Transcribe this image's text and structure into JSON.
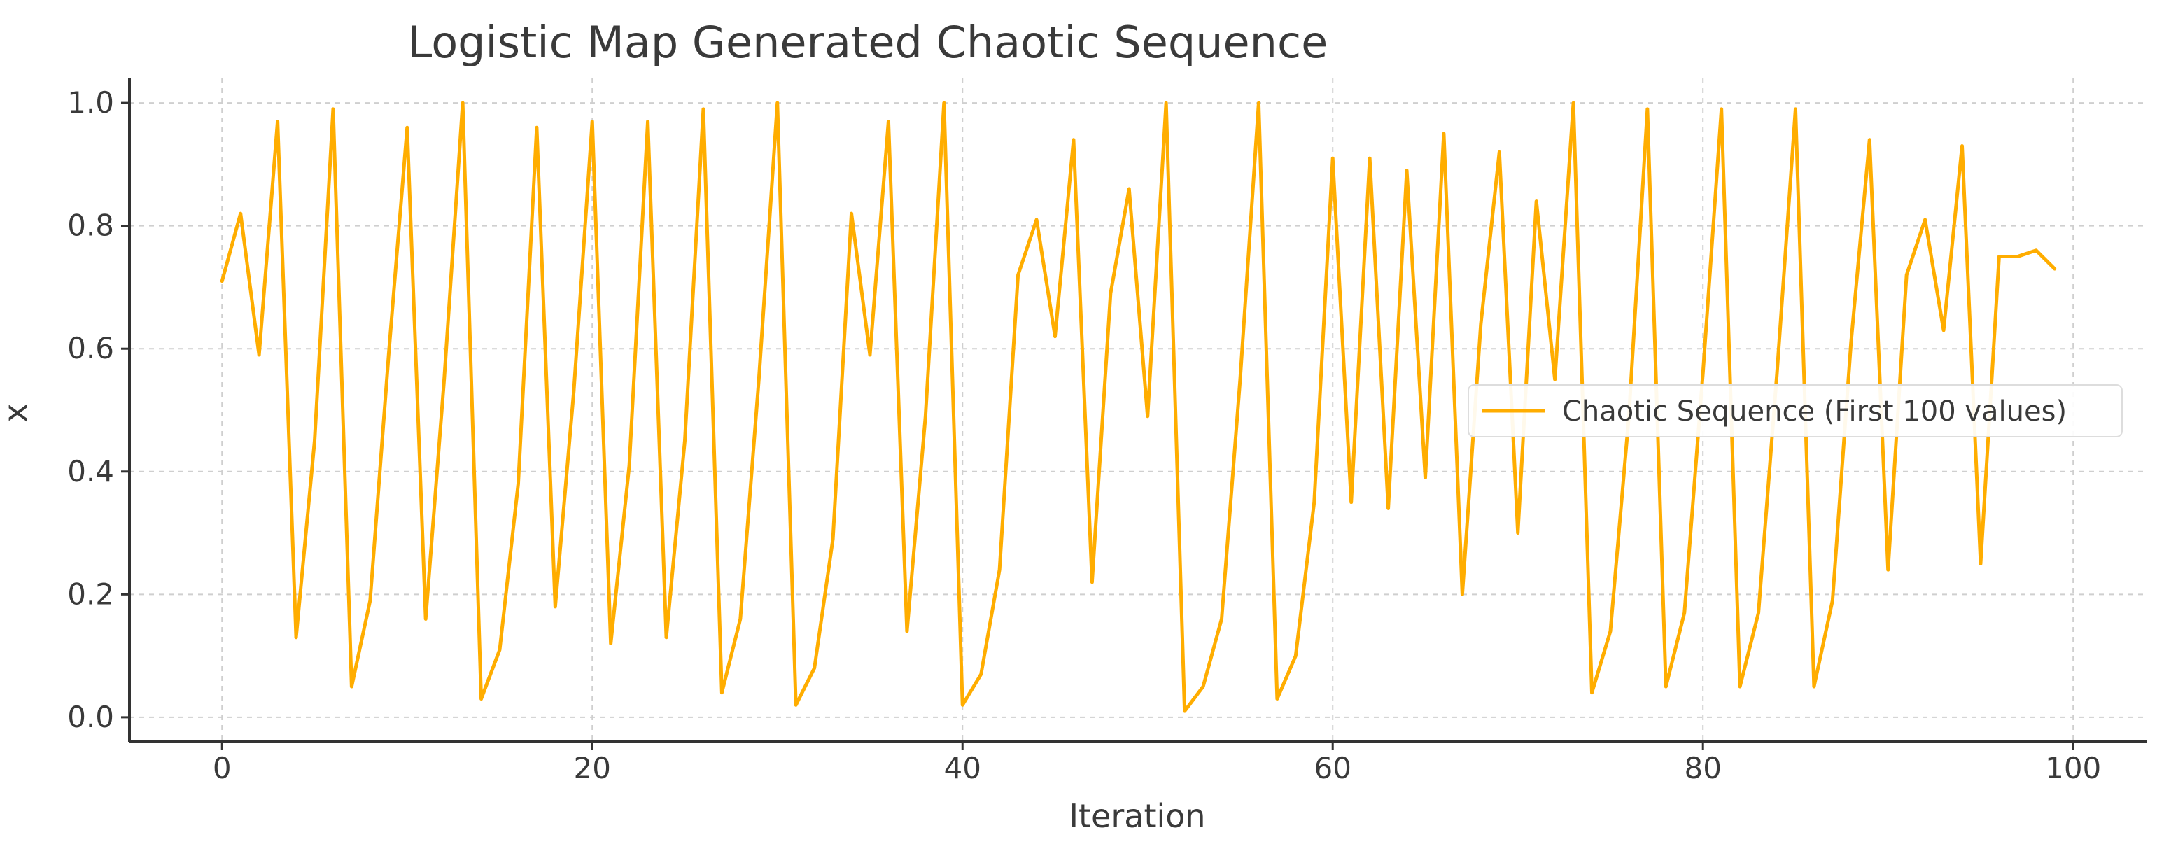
{
  "chart_data": {
    "type": "line",
    "title": "Logistic Map Generated Chaotic Sequence",
    "xlabel": "Iteration",
    "ylabel": "x",
    "xlim": [
      -5,
      104
    ],
    "ylim": [
      -0.04,
      1.04
    ],
    "x_ticks": [
      0,
      20,
      40,
      60,
      80,
      100
    ],
    "x_tick_labels": [
      "0",
      "20",
      "40",
      "60",
      "80",
      "100"
    ],
    "y_ticks": [
      0.0,
      0.2,
      0.4,
      0.6,
      0.8,
      1.0
    ],
    "y_tick_labels": [
      "0.0",
      "0.2",
      "0.4",
      "0.6",
      "0.8",
      "1.0"
    ],
    "grid": true,
    "legend": "center-right",
    "series": [
      {
        "name": "Chaotic Sequence (First 100 values)",
        "color": "#ffad00",
        "x": [
          0,
          1,
          2,
          3,
          4,
          5,
          6,
          7,
          8,
          9,
          10,
          11,
          12,
          13,
          14,
          15,
          16,
          17,
          18,
          19,
          20,
          21,
          22,
          23,
          24,
          25,
          26,
          27,
          28,
          29,
          30,
          31,
          32,
          33,
          34,
          35,
          36,
          37,
          38,
          39,
          40,
          41,
          42,
          43,
          44,
          45,
          46,
          47,
          48,
          49,
          50,
          51,
          52,
          53,
          54,
          55,
          56,
          57,
          58,
          59,
          60,
          61,
          62,
          63,
          64,
          65,
          66,
          67,
          68,
          69,
          70,
          71,
          72,
          73,
          74,
          75,
          76,
          77,
          78,
          79,
          80,
          81,
          82,
          83,
          84,
          85,
          86,
          87,
          88,
          89,
          90,
          91,
          92,
          93,
          94,
          95,
          96,
          97,
          98,
          99
        ],
        "y": [
          0.71,
          0.82,
          0.59,
          0.97,
          0.13,
          0.45,
          0.99,
          0.05,
          0.19,
          0.59,
          0.96,
          0.16,
          0.55,
          1.0,
          0.03,
          0.11,
          0.38,
          0.96,
          0.18,
          0.53,
          0.97,
          0.12,
          0.41,
          0.97,
          0.13,
          0.45,
          0.99,
          0.04,
          0.16,
          0.55,
          1.0,
          0.02,
          0.08,
          0.29,
          0.82,
          0.59,
          0.97,
          0.14,
          0.49,
          1.0,
          0.02,
          0.07,
          0.24,
          0.72,
          0.81,
          0.62,
          0.94,
          0.22,
          0.69,
          0.86,
          0.49,
          1.0,
          0.01,
          0.05,
          0.16,
          0.55,
          1.0,
          0.03,
          0.1,
          0.35,
          0.91,
          0.35,
          0.91,
          0.34,
          0.89,
          0.39,
          0.95,
          0.2,
          0.64,
          0.92,
          0.3,
          0.84,
          0.55,
          1.0,
          0.04,
          0.14,
          0.49,
          0.99,
          0.05,
          0.17,
          0.56,
          0.99,
          0.05,
          0.17,
          0.56,
          0.99,
          0.05,
          0.19,
          0.61,
          0.94,
          0.24,
          0.72,
          0.81,
          0.63,
          0.93,
          0.25,
          0.75,
          0.75,
          0.76,
          0.73
        ]
      }
    ]
  }
}
